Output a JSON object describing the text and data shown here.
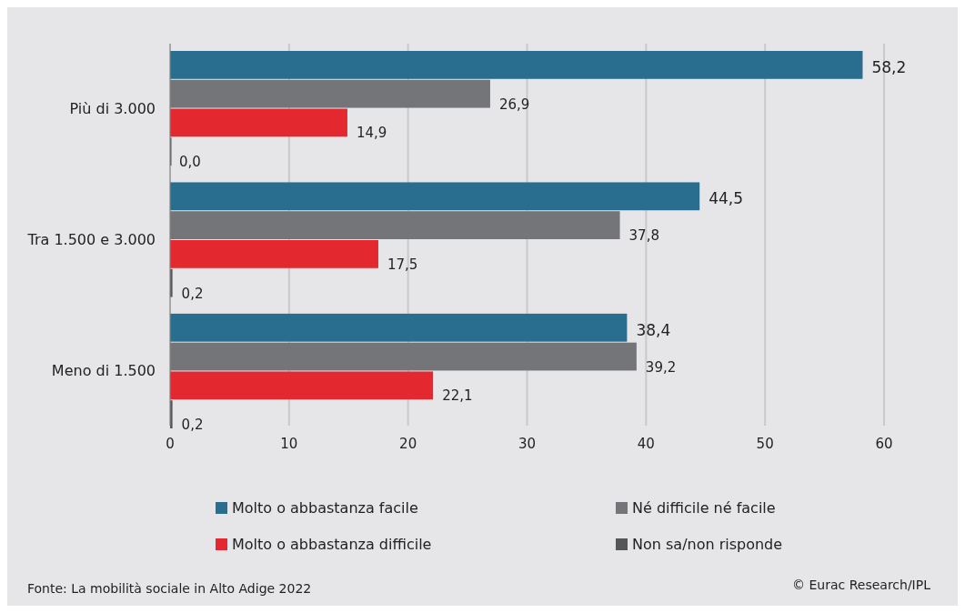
{
  "chart_data": {
    "type": "bar",
    "orientation": "horizontal",
    "categories": [
      "Più di 3.000",
      "Tra 1.500 e 3.000",
      "Meno di 1.500"
    ],
    "series": [
      {
        "name": "Molto o abbastanza facile",
        "color": "#2a6e8f",
        "values": [
          58.2,
          44.5,
          38.4
        ],
        "value_labels": [
          "58,2",
          "44,5",
          "38,4"
        ]
      },
      {
        "name": "Né difficile né facile",
        "color": "#737578",
        "values": [
          26.9,
          37.8,
          39.2
        ],
        "value_labels": [
          "26,9",
          "37,8",
          "39,2"
        ]
      },
      {
        "name": "Molto o abbastanza difficile",
        "color": "#e3282f",
        "values": [
          14.9,
          17.5,
          22.1
        ],
        "value_labels": [
          "14,9",
          "17,5",
          "22,1"
        ]
      },
      {
        "name": "Non sa/non risponde",
        "color": "#555658",
        "values": [
          0,
          0.2,
          0.2
        ],
        "value_labels": [
          "0,0",
          "0,2",
          "0,2"
        ]
      }
    ],
    "xlim": [
      0,
      60
    ],
    "xticks": [
      0,
      10,
      20,
      30,
      40,
      50,
      60
    ],
    "grid": "x",
    "legend": "bottom",
    "annotations": [
      "Fonte: La mobilità sociale in Alto Adige 2022",
      "© Eurac Research/IPL"
    ]
  }
}
